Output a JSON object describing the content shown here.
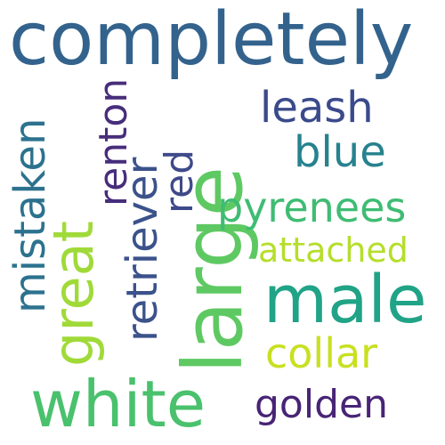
{
  "words": {
    "completely": {
      "text": "completely",
      "color": "#33638d"
    },
    "large": {
      "text": "large",
      "color": "#5ec962"
    },
    "great": {
      "text": "great",
      "color": "#a0da39"
    },
    "male": {
      "text": "male",
      "color": "#20a386"
    },
    "white": {
      "text": "white",
      "color": "#4ac16d"
    },
    "mistaken": {
      "text": "mistaken",
      "color": "#2c728e"
    },
    "retriever": {
      "text": "retriever",
      "color": "#3b528b"
    },
    "renton": {
      "text": "renton",
      "color": "#472d7b"
    },
    "red": {
      "text": "red",
      "color": "#3e4a89"
    },
    "leash": {
      "text": "leash",
      "color": "#3b4a8b"
    },
    "blue": {
      "text": "blue",
      "color": "#26828e"
    },
    "pyrenees": {
      "text": "pyrenees",
      "color": "#3fbc73"
    },
    "attached": {
      "text": "attached",
      "color": "#b5de2b"
    },
    "collar": {
      "text": "collar",
      "color": "#c8e020"
    },
    "golden": {
      "text": "golden",
      "color": "#482475"
    }
  }
}
